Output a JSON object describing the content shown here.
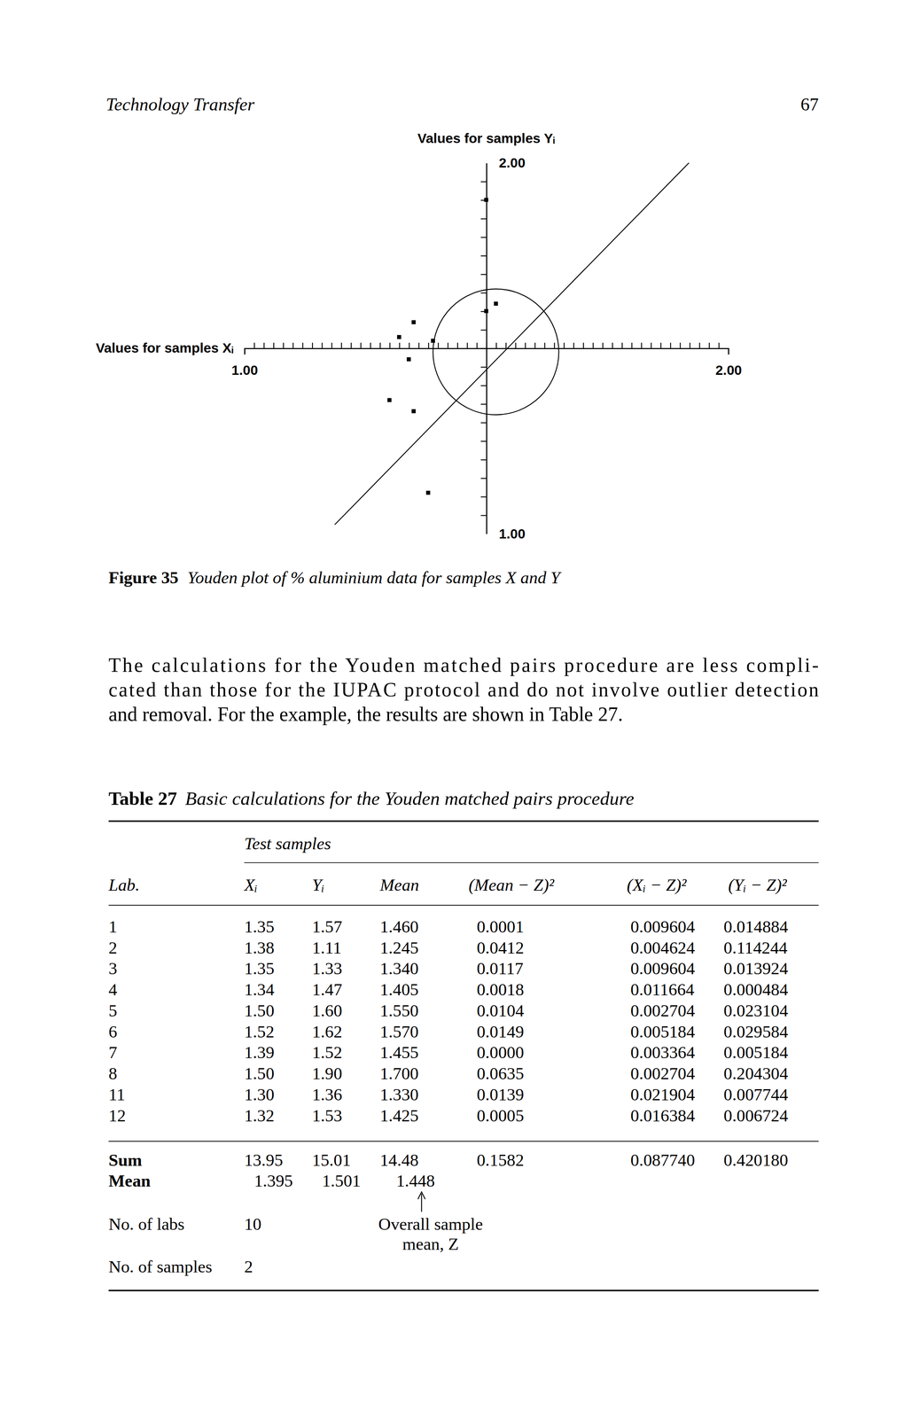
{
  "header": {
    "title": "Technology Transfer",
    "page": "67"
  },
  "chart_data": {
    "type": "scatter",
    "x_label": "Values for samples Xᵢ",
    "y_label": "Values for samples Yᵢ",
    "x": [
      1.35,
      1.38,
      1.35,
      1.34,
      1.5,
      1.52,
      1.39,
      1.5,
      1.3,
      1.32
    ],
    "y": [
      1.57,
      1.11,
      1.33,
      1.47,
      1.6,
      1.62,
      1.52,
      1.9,
      1.36,
      1.53
    ],
    "xlim": [
      1,
      2
    ],
    "ylim": [
      1,
      2
    ],
    "xticks": [
      {
        "value": 1,
        "label": "1.00"
      },
      {
        "value": 2,
        "label": "2.00"
      }
    ],
    "yticks": [
      {
        "value": 1,
        "label": "1.00"
      },
      {
        "value": 2,
        "label": "2.00"
      }
    ],
    "x_minor_ticks": [
      1.02,
      1.04,
      1.06,
      1.08,
      1.1,
      1.12,
      1.14,
      1.16,
      1.18,
      1.2,
      1.22,
      1.24,
      1.26,
      1.28,
      1.3,
      1.32,
      1.34,
      1.36,
      1.38,
      1.4,
      1.42,
      1.44,
      1.46,
      1.48,
      1.5,
      1.52,
      1.54,
      1.56,
      1.58,
      1.6,
      1.62,
      1.64,
      1.66,
      1.68,
      1.7,
      1.72,
      1.74,
      1.76,
      1.78,
      1.8,
      1.82,
      1.84,
      1.86,
      1.88,
      1.9,
      1.92,
      1.94,
      1.96,
      1.98
    ],
    "y_minor_ticks": [
      1.05,
      1.1,
      1.15,
      1.2,
      1.25,
      1.3,
      1.35,
      1.4,
      1.45,
      1.5,
      1.55,
      1.6,
      1.65,
      1.7,
      1.75,
      1.8,
      1.85,
      1.9,
      1.95
    ],
    "axis_origin": [
      1.5,
      1.5
    ],
    "circle": {
      "center": [
        1.52,
        1.49
      ],
      "radius": 0.13
    },
    "reference_line": {
      "x": [
        1.187,
        1.919
      ],
      "y": [
        1.024,
        2.0
      ]
    },
    "marker": "square",
    "color": "#000000"
  },
  "figure_caption": {
    "label": "Figure 35",
    "text": "Youden plot of % aluminium data for samples X and Y"
  },
  "paragraph": [
    "The calculations for the Youden matched pairs procedure are less compli-",
    "cated than those for the IUPAC protocol and do not involve outlier detection",
    "and removal. For the example, the results are shown in Table 27."
  ],
  "table": {
    "caption_label": "Table 27",
    "caption": "Basic calculations for the Youden matched pairs procedure",
    "group_header": "Test samples",
    "columns": [
      "Lab.",
      "Xᵢ",
      "Yᵢ",
      "Mean",
      "(Mean − Z)²",
      "(Xᵢ − Z)²",
      "(Yᵢ − Z)²"
    ],
    "rows": [
      [
        "1",
        "1.35",
        "1.57",
        "1.460",
        "0.0001",
        "0.009604",
        "0.014884"
      ],
      [
        "2",
        "1.38",
        "1.11",
        "1.245",
        "0.0412",
        "0.004624",
        "0.114244"
      ],
      [
        "3",
        "1.35",
        "1.33",
        "1.340",
        "0.0117",
        "0.009604",
        "0.013924"
      ],
      [
        "4",
        "1.34",
        "1.47",
        "1.405",
        "0.0018",
        "0.011664",
        "0.000484"
      ],
      [
        "5",
        "1.50",
        "1.60",
        "1.550",
        "0.0104",
        "0.002704",
        "0.023104"
      ],
      [
        "6",
        "1.52",
        "1.62",
        "1.570",
        "0.0149",
        "0.005184",
        "0.029584"
      ],
      [
        "7",
        "1.39",
        "1.52",
        "1.455",
        "0.0000",
        "0.003364",
        "0.005184"
      ],
      [
        "8",
        "1.50",
        "1.90",
        "1.700",
        "0.0635",
        "0.002704",
        "0.204304"
      ],
      [
        "11",
        "1.30",
        "1.36",
        "1.330",
        "0.0139",
        "0.021904",
        "0.007744"
      ],
      [
        "12",
        "1.32",
        "1.53",
        "1.425",
        "0.0005",
        "0.016384",
        "0.006724"
      ]
    ],
    "sum": [
      "Sum",
      "13.95",
      "15.01",
      "14.48",
      "0.1582",
      "0.087740",
      "0.420180"
    ],
    "mean": [
      "Mean",
      "1.395",
      "1.501",
      "1.448"
    ],
    "overall_mean_note": [
      "Overall sample",
      "mean, Z"
    ],
    "labs": [
      "No. of labs",
      "10"
    ],
    "samples": [
      "No. of samples",
      "2"
    ]
  }
}
